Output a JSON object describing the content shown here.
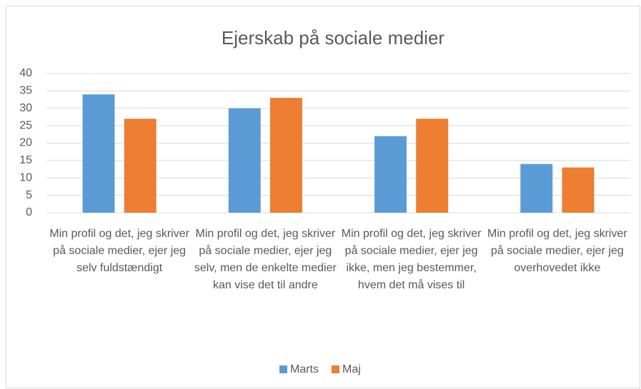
{
  "chart_data": {
    "type": "bar",
    "title": "Ejerskab på sociale medier",
    "categories": [
      "Min profil og det, jeg skriver på sociale medier, ejer jeg selv fuldstændigt",
      "Min profil og det, jeg skriver på sociale medier, ejer jeg selv, men de enkelte medier kan vise det til andre",
      "Min profil og det, jeg skriver på sociale medier, ejer jeg ikke, men jeg bestemmer, hvem det må vises til",
      "Min profil og det, jeg skriver på sociale medier, ejer jeg overhovedet ikke"
    ],
    "series": [
      {
        "name": "Marts",
        "color": "#5b9bd5",
        "values": [
          34,
          30,
          22,
          14
        ]
      },
      {
        "name": "Maj",
        "color": "#ed7d31",
        "values": [
          27,
          33,
          27,
          13
        ]
      }
    ],
    "ylim": [
      0,
      40
    ],
    "yticks": [
      0,
      5,
      10,
      15,
      20,
      25,
      30,
      35,
      40
    ],
    "grid": true,
    "legend": "bottom"
  }
}
